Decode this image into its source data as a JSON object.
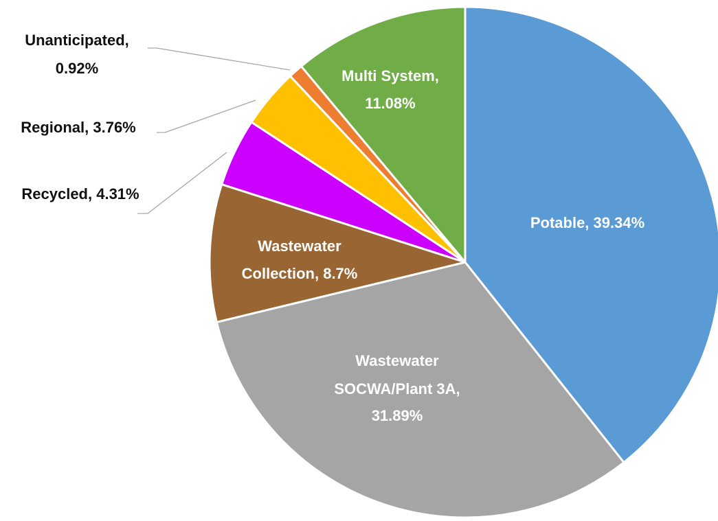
{
  "chart_data": {
    "type": "pie",
    "categories": [
      "Potable",
      "Wastewater SOCWA/Plant 3A",
      "Wastewater Collection",
      "Recycled",
      "Regional",
      "Unanticipated",
      "Multi System"
    ],
    "values": [
      39.34,
      31.89,
      8.7,
      4.31,
      3.76,
      0.92,
      11.08
    ],
    "value_labels": [
      [
        "Potable, 39.34%"
      ],
      [
        "Wastewater",
        "SOCWA/Plant 3A,",
        "31.89%"
      ],
      [
        "Wastewater",
        "Collection, 8.7%"
      ],
      [
        "Recycled, 4.31%"
      ],
      [
        "Regional, 3.76%"
      ],
      [
        "Unanticipated,",
        "0.92%"
      ],
      [
        "Multi System,",
        "11.08%"
      ]
    ],
    "colors": [
      "#5b9bd5",
      "#a5a5a5",
      "#996633",
      "#cc00ff",
      "#ffc000",
      "#ed7d31",
      "#70ad47"
    ]
  }
}
